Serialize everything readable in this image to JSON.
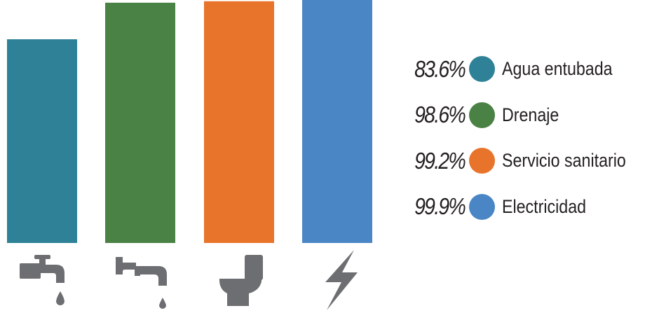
{
  "chart_data": {
    "type": "bar",
    "categories": [
      "Agua entubada",
      "Drenaje",
      "Servicio sanitario",
      "Electricidad"
    ],
    "values": [
      83.6,
      98.6,
      99.2,
      99.9
    ],
    "value_labels": [
      "83.6%",
      "98.6%",
      "99.2%",
      "99.9%"
    ],
    "colors": [
      "#2e8197",
      "#4a8144",
      "#e8742b",
      "#4a86c5"
    ],
    "icons": [
      "faucet-icon",
      "drain-pipe-icon",
      "toilet-icon",
      "lightning-icon"
    ],
    "ylim": [
      0,
      100
    ],
    "grid": false,
    "legend_position": "right"
  }
}
